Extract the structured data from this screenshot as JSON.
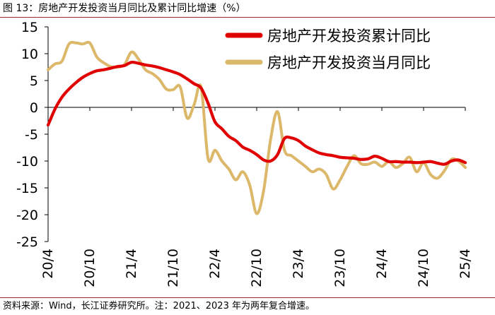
{
  "header": {
    "title": "图 13：房地产开发投资当月同比及累计同比增速（%）"
  },
  "footer": {
    "source": "资料来源：Wind，长江证券研究所。注：2021、2023 年为两年复合增速。"
  },
  "colors": {
    "cumulative": "#e00000",
    "monthly": "#dcb86a",
    "axis": "#000000"
  },
  "chart_data": {
    "type": "line",
    "title": "房地产开发投资当月同比及累计同比增速（%）",
    "xlabel": "",
    "ylabel": "",
    "ylim": [
      -25,
      15
    ],
    "yticks": [
      15,
      10,
      5,
      0,
      -5,
      -10,
      -15,
      -20,
      -25
    ],
    "xlim": [
      0,
      60
    ],
    "xticks": [
      {
        "x": 0,
        "label": "20/4"
      },
      {
        "x": 6,
        "label": "20/10"
      },
      {
        "x": 12,
        "label": "21/4"
      },
      {
        "x": 18,
        "label": "21/10"
      },
      {
        "x": 24,
        "label": "22/4"
      },
      {
        "x": 30,
        "label": "22/10"
      },
      {
        "x": 36,
        "label": "23/4"
      },
      {
        "x": 42,
        "label": "23/10"
      },
      {
        "x": 48,
        "label": "24/4"
      },
      {
        "x": 54,
        "label": "24/10"
      },
      {
        "x": 60,
        "label": "25/4"
      }
    ],
    "legend_position": "top-right",
    "series": [
      {
        "name": "房地产开发投资累计同比",
        "color": "#e00000",
        "x": [
          0,
          1,
          2,
          3,
          4,
          5,
          6,
          7,
          8,
          9,
          10,
          11,
          12,
          13,
          14,
          15,
          16,
          17,
          18,
          19,
          20,
          21,
          22,
          23,
          24,
          25,
          26,
          27,
          28,
          29,
          30,
          31,
          32,
          33,
          34,
          35,
          36,
          37,
          38,
          39,
          40,
          41,
          42,
          43,
          44,
          45,
          46,
          47,
          48,
          49,
          50,
          51,
          52,
          53,
          54,
          55,
          56,
          57,
          58,
          59,
          60
        ],
        "values": [
          -3.3,
          -0.3,
          1.9,
          3.4,
          4.6,
          5.6,
          6.3,
          6.8,
          7.0,
          7.3,
          7.6,
          7.8,
          8.4,
          8.2,
          7.9,
          7.7,
          7.4,
          7.0,
          6.6,
          6.1,
          5.3,
          4.4,
          3.6,
          0.8,
          -2.7,
          -4.0,
          -5.4,
          -6.2,
          -7.4,
          -8.0,
          -8.8,
          -9.8,
          -10.0,
          -8.8,
          -5.8,
          -5.7,
          -6.2,
          -7.2,
          -7.9,
          -8.5,
          -8.8,
          -9.0,
          -9.3,
          -9.4,
          -9.5,
          -9.7,
          -9.6,
          -9.1,
          -9.5,
          -10.1,
          -10.1,
          -10.2,
          -10.2,
          -10.3,
          -10.2,
          -10.1,
          -10.4,
          -10.6,
          -10.0,
          -9.8,
          -10.3
        ]
      },
      {
        "name": "房地产开发投资当月同比",
        "color": "#dcb86a",
        "x": [
          0,
          1,
          2,
          3,
          4,
          5,
          6,
          7,
          8,
          9,
          10,
          11,
          12,
          13,
          14,
          15,
          16,
          17,
          18,
          19,
          20,
          21,
          22,
          23,
          24,
          25,
          26,
          27,
          28,
          29,
          30,
          31,
          32,
          33,
          34,
          35,
          36,
          37,
          38,
          39,
          40,
          41,
          42,
          43,
          44,
          45,
          46,
          47,
          48,
          49,
          50,
          51,
          52,
          53,
          54,
          55,
          56,
          57,
          58,
          59,
          60
        ],
        "values": [
          7.0,
          8.1,
          8.6,
          11.8,
          12.0,
          11.8,
          12.0,
          9.4,
          8.3,
          7.6,
          7.5,
          8.0,
          10.3,
          9.0,
          7.0,
          6.3,
          5.2,
          3.4,
          3.3,
          3.8,
          -2.0,
          0.5,
          3.8,
          -9.5,
          -8.0,
          -10.0,
          -11.5,
          -13.5,
          -12.0,
          -14.5,
          -19.8,
          -15.5,
          -6.0,
          -0.8,
          -8.0,
          -9.0,
          -10.0,
          -11.0,
          -12.0,
          -11.5,
          -12.5,
          -15.2,
          -13.5,
          -11.0,
          -9.0,
          -10.5,
          -10.6,
          -10.2,
          -11.0,
          -10.1,
          -11.2,
          -10.5,
          -9.3,
          -12.0,
          -10.3,
          -12.5,
          -13.2,
          -11.8,
          -9.7,
          -10.0,
          -11.2
        ]
      }
    ]
  }
}
